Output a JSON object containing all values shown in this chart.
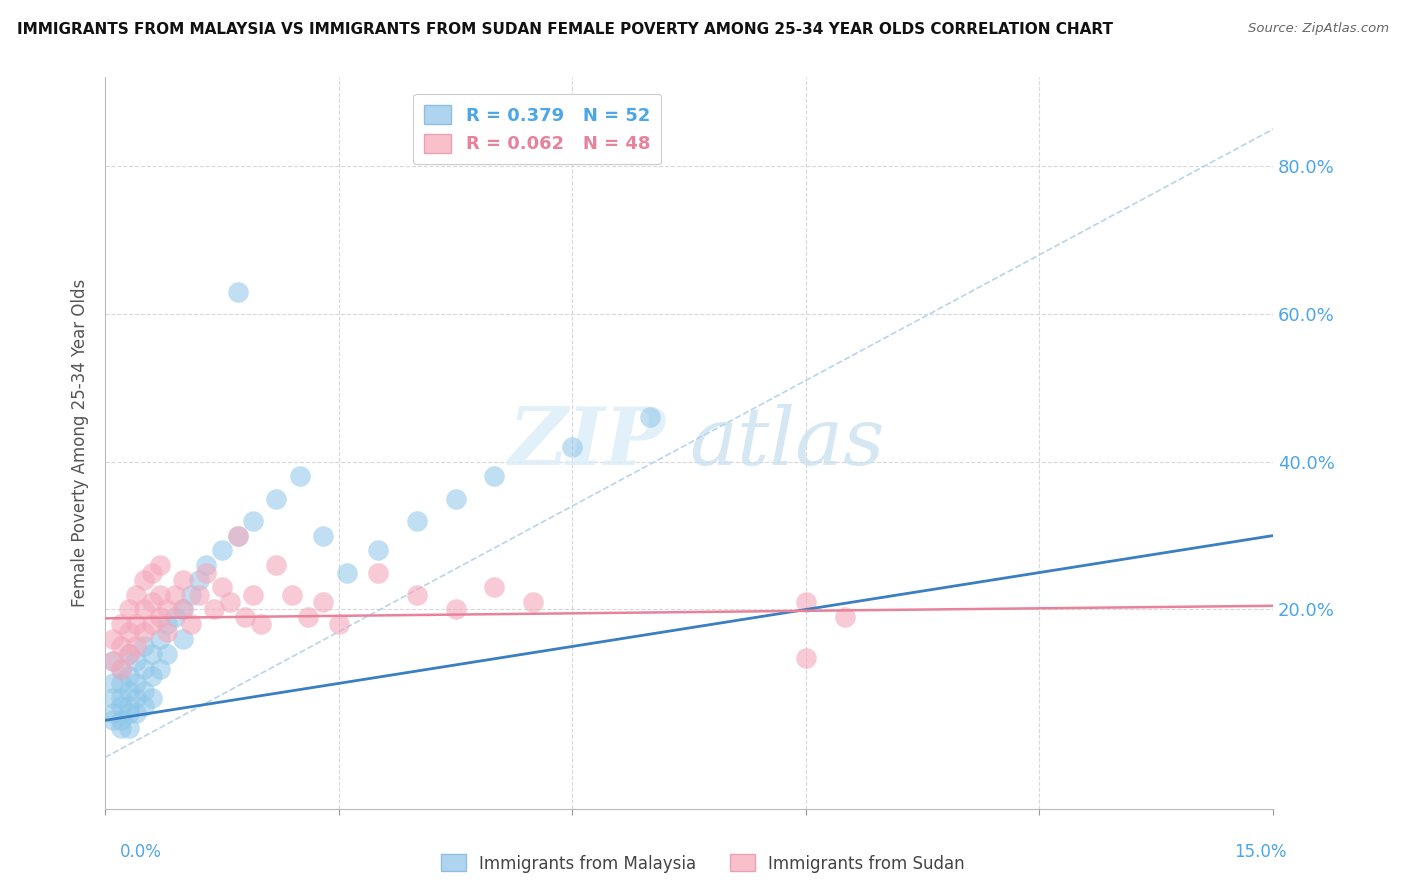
{
  "title": "IMMIGRANTS FROM MALAYSIA VS IMMIGRANTS FROM SUDAN FEMALE POVERTY AMONG 25-34 YEAR OLDS CORRELATION CHART",
  "source": "Source: ZipAtlas.com",
  "ylabel": "Female Poverty Among 25-34 Year Olds",
  "series1_color": "#8ec6e8",
  "series2_color": "#f4a8bc",
  "trendline1_color": "#3a7fc1",
  "trendline2_color": "#e8829a",
  "diagonal_color": "#b8d4ec",
  "background_color": "#ffffff",
  "xlim": [
    0.0,
    0.15
  ],
  "ylim": [
    -0.07,
    0.92
  ],
  "y_tick_vals": [
    0.2,
    0.4,
    0.6,
    0.8
  ],
  "y_tick_labels": [
    "20.0%",
    "40.0%",
    "60.0%",
    "80.0%"
  ],
  "legend1_label": "R = 0.379   N = 52",
  "legend2_label": "R = 0.062   N = 48",
  "legend1_facecolor": "#aed4f0",
  "legend2_facecolor": "#f9c0cc",
  "watermark_zip": "ZIP",
  "watermark_atlas": "atlas",
  "malaysia_x": [
    0.001,
    0.001,
    0.001,
    0.001,
    0.001,
    0.002,
    0.002,
    0.002,
    0.002,
    0.002,
    0.002,
    0.003,
    0.003,
    0.003,
    0.003,
    0.003,
    0.003,
    0.004,
    0.004,
    0.004,
    0.004,
    0.005,
    0.005,
    0.005,
    0.005,
    0.006,
    0.006,
    0.006,
    0.007,
    0.007,
    0.008,
    0.008,
    0.009,
    0.01,
    0.01,
    0.011,
    0.012,
    0.013,
    0.015,
    0.017,
    0.019,
    0.022,
    0.025,
    0.028,
    0.031,
    0.035,
    0.04,
    0.045,
    0.05,
    0.06,
    0.07,
    0.017
  ],
  "malaysia_y": [
    0.13,
    0.1,
    0.08,
    0.06,
    0.05,
    0.12,
    0.1,
    0.08,
    0.07,
    0.05,
    0.04,
    0.14,
    0.11,
    0.09,
    0.07,
    0.06,
    0.04,
    0.13,
    0.1,
    0.08,
    0.06,
    0.15,
    0.12,
    0.09,
    0.07,
    0.14,
    0.11,
    0.08,
    0.16,
    0.12,
    0.18,
    0.14,
    0.19,
    0.2,
    0.16,
    0.22,
    0.24,
    0.26,
    0.28,
    0.3,
    0.32,
    0.35,
    0.38,
    0.3,
    0.25,
    0.28,
    0.32,
    0.35,
    0.38,
    0.42,
    0.46,
    0.63
  ],
  "sudan_x": [
    0.001,
    0.001,
    0.002,
    0.002,
    0.002,
    0.003,
    0.003,
    0.003,
    0.004,
    0.004,
    0.004,
    0.005,
    0.005,
    0.005,
    0.006,
    0.006,
    0.006,
    0.007,
    0.007,
    0.007,
    0.008,
    0.008,
    0.009,
    0.01,
    0.01,
    0.011,
    0.012,
    0.013,
    0.014,
    0.015,
    0.016,
    0.017,
    0.018,
    0.019,
    0.02,
    0.022,
    0.024,
    0.026,
    0.028,
    0.03,
    0.035,
    0.04,
    0.045,
    0.09,
    0.09,
    0.095,
    0.05,
    0.055
  ],
  "sudan_y": [
    0.16,
    0.13,
    0.18,
    0.15,
    0.12,
    0.2,
    0.17,
    0.14,
    0.22,
    0.18,
    0.15,
    0.24,
    0.2,
    0.17,
    0.25,
    0.21,
    0.18,
    0.26,
    0.22,
    0.19,
    0.2,
    0.17,
    0.22,
    0.24,
    0.2,
    0.18,
    0.22,
    0.25,
    0.2,
    0.23,
    0.21,
    0.3,
    0.19,
    0.22,
    0.18,
    0.26,
    0.22,
    0.19,
    0.21,
    0.18,
    0.25,
    0.22,
    0.2,
    0.21,
    0.135,
    0.19,
    0.23,
    0.21
  ],
  "trendline1_x0": 0.0,
  "trendline1_y0": 0.05,
  "trendline1_x1": 0.15,
  "trendline1_y1": 0.3,
  "trendline2_x0": 0.0,
  "trendline2_y0": 0.188,
  "trendline2_x1": 0.15,
  "trendline2_y1": 0.205
}
